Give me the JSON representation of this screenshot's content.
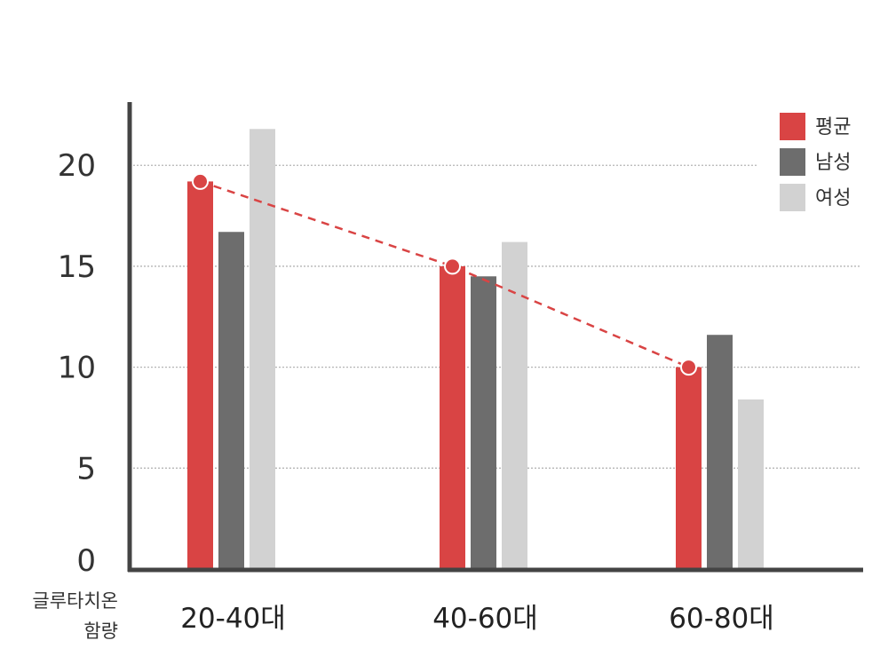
{
  "chart_data": {
    "type": "bar",
    "title": "",
    "ylabel_lines": [
      "글루타치온",
      "함량"
    ],
    "xlabel": "",
    "categories": [
      "20-40대",
      "40-60대",
      "60-80대"
    ],
    "ylim": [
      0,
      23
    ],
    "yticks": [
      0,
      5,
      10,
      15,
      20
    ],
    "series": [
      {
        "name": "평균",
        "values": [
          19.2,
          15.0,
          10.0
        ],
        "color": "#d94444"
      },
      {
        "name": "남성",
        "values": [
          16.7,
          14.5,
          11.6
        ],
        "color": "#6d6d6d"
      },
      {
        "name": "여성",
        "values": [
          21.8,
          16.2,
          8.4
        ],
        "color": "#d2d2d2"
      }
    ],
    "average_line": {
      "series": "평균",
      "style": "dashed",
      "color": "#d94444",
      "markers": "circle"
    },
    "grid": "dotted horizontal",
    "legend_position": "top-right"
  }
}
